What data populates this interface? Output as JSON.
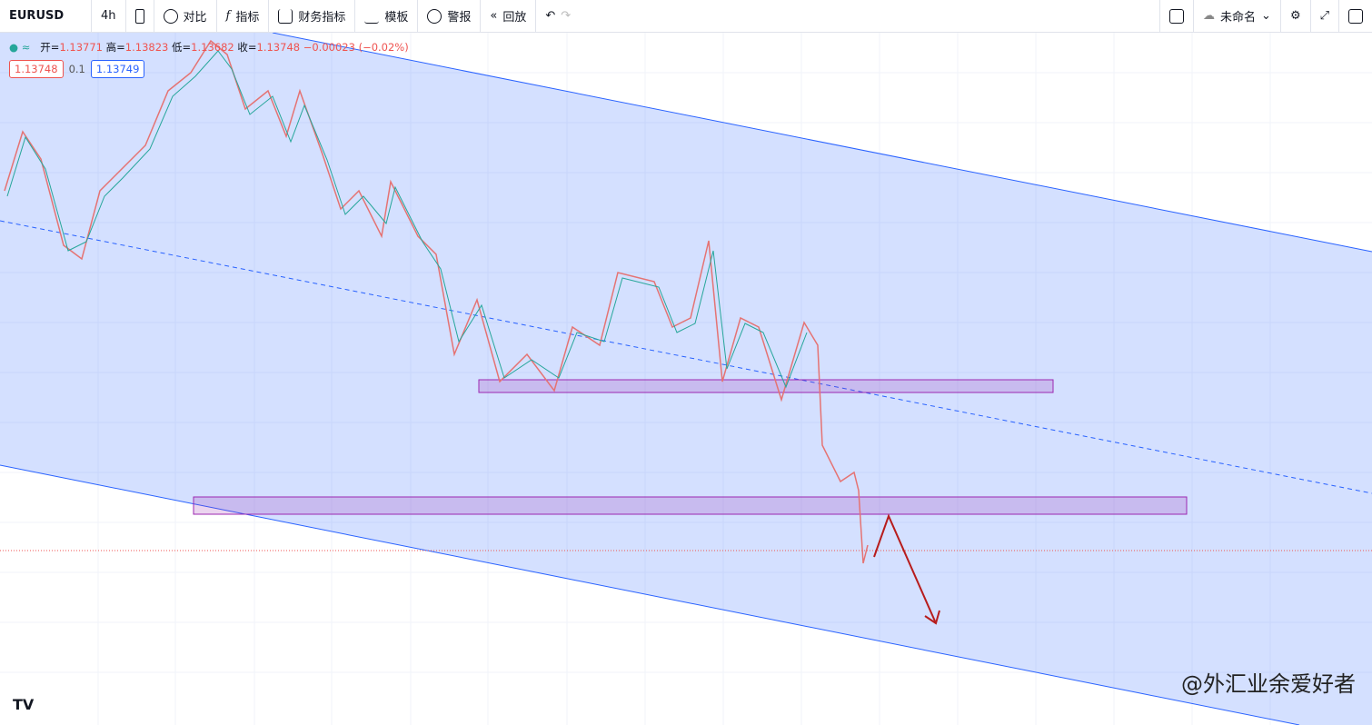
{
  "toolbar": {
    "symbol": "EURUSD",
    "interval": "4h",
    "compare": "对比",
    "indicators": "指标",
    "financials": "财务指标",
    "templates": "模板",
    "alerts": "警报",
    "replay": "回放",
    "layout_name": "未命名"
  },
  "legend": {
    "open_label": "开=",
    "open": "1.13771",
    "high_label": "高=",
    "high": "1.13823",
    "low_label": "低=",
    "low": "1.13682",
    "close_label": "收=",
    "close": "1.13748",
    "change": "−0.00023 (−0.02%)",
    "bid": "1.13748",
    "spread": "0.1",
    "ask": "1.13749"
  },
  "watermark": "@外汇业余爱好者"
}
